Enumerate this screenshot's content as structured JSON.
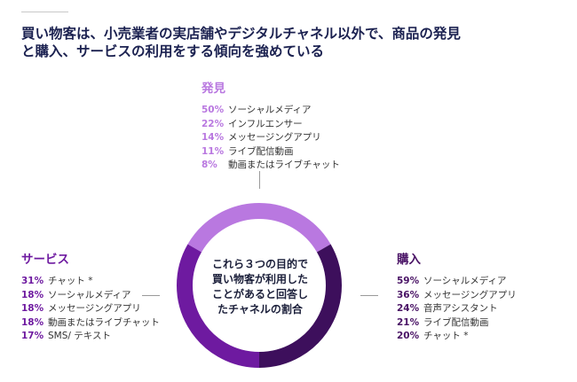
{
  "headline": {
    "line1": "買い物客は、小売業者の実店舗やデジタルチャネル以外で、商品の発見",
    "line2": "と購入、サービスの利用をする傾向を強めている"
  },
  "center": {
    "lines": [
      "これら３つの目的で",
      "買い物客が利用した",
      "ことがあると回答し",
      "たチャネルの割合"
    ]
  },
  "discovery": {
    "title": "発見",
    "color": "#b978e0",
    "items": [
      {
        "pct": "50%",
        "label": "ソーシャルメディア"
      },
      {
        "pct": "22%",
        "label": "インフルエンサー"
      },
      {
        "pct": "14%",
        "label": "メッセージングアプリ"
      },
      {
        "pct": "11%",
        "label": "ライブ配信動画"
      },
      {
        "pct": "8%",
        "label": "動画またはライブチャット"
      }
    ]
  },
  "purchase": {
    "title": "購入",
    "color": "#3d0f5c",
    "items": [
      {
        "pct": "59%",
        "label": "ソーシャルメディア"
      },
      {
        "pct": "36%",
        "label": "メッセージングアプリ"
      },
      {
        "pct": "24%",
        "label": "音声アシスタント"
      },
      {
        "pct": "21%",
        "label": "ライブ配信動画"
      },
      {
        "pct": "20%",
        "label": "チャット *"
      }
    ]
  },
  "service": {
    "title": "サービス",
    "color": "#6e1aa0",
    "items": [
      {
        "pct": "31%",
        "label": "チャット *"
      },
      {
        "pct": "18%",
        "label": "ソーシャルメディア"
      },
      {
        "pct": "18%",
        "label": "メッセージングアプリ"
      },
      {
        "pct": "18%",
        "label": "動画またはライブチャット"
      },
      {
        "pct": "17%",
        "label": "SMS/ テキスト"
      }
    ]
  }
}
